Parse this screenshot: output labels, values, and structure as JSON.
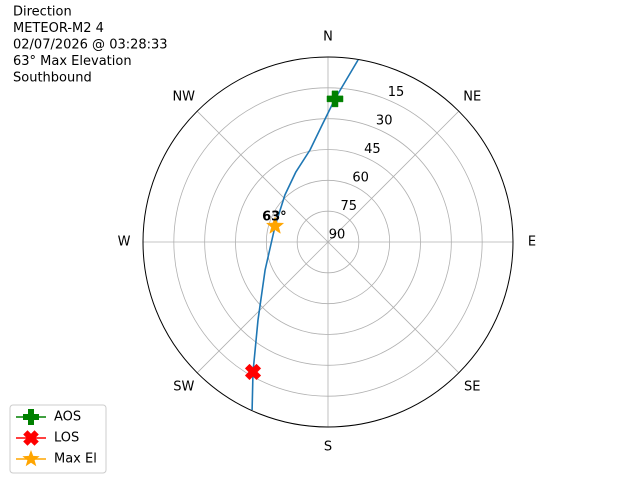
{
  "chart_data": {
    "type": "polar",
    "title_lines": [
      "Direction",
      "METEOR-M2 4",
      "02/07/2026 @ 03:28:33",
      "63° Max Elevation",
      "Southbound"
    ],
    "thetaticks": [
      {
        "value": 0,
        "label": "N"
      },
      {
        "value": 45,
        "label": "NE"
      },
      {
        "value": 90,
        "label": "E"
      },
      {
        "value": 135,
        "label": "SE"
      },
      {
        "value": 180,
        "label": "S"
      },
      {
        "value": 225,
        "label": "SW"
      },
      {
        "value": 270,
        "label": "W"
      },
      {
        "value": 315,
        "label": "NW"
      }
    ],
    "rlim": [
      90,
      0
    ],
    "rticks": [
      15,
      30,
      45,
      60,
      75,
      90
    ],
    "grid": true,
    "track": {
      "color": "#1f77b4",
      "azimuth": [
        9.4,
        2.8,
        357.1,
        348.9,
        335.4,
        317.5,
        286.8,
        246,
        221.9,
        210,
        204.3
      ],
      "elevation": [
        0.2,
        20.3,
        33,
        44.4,
        52.5,
        59,
        63.1,
        56.5,
        39,
        17,
        0.3
      ]
    },
    "markers": [
      {
        "name": "AOS",
        "color": "#008000",
        "marker": "plus",
        "azimuth": 2.8,
        "elevation": 20.3
      },
      {
        "name": "LOS",
        "color": "#ff0000",
        "marker": "x",
        "azimuth": 210,
        "elevation": 17
      },
      {
        "name": "Max El",
        "color": "#ffa500",
        "marker": "star",
        "azimuth": 286.8,
        "elevation": 63.1
      }
    ],
    "annotation": {
      "text": "63°",
      "azimuth": 286.8,
      "elevation": 63.1
    },
    "legend": "lower left"
  }
}
